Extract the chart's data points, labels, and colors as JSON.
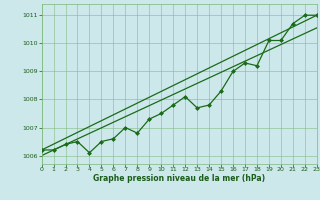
{
  "x": [
    0,
    1,
    2,
    3,
    4,
    5,
    6,
    7,
    8,
    9,
    10,
    11,
    12,
    13,
    14,
    15,
    16,
    17,
    18,
    19,
    20,
    21,
    22,
    23
  ],
  "line1": [
    1006.2,
    1006.2,
    1006.4,
    1006.5,
    1006.1,
    1006.5,
    1006.6,
    1007.0,
    1006.8,
    1007.3,
    1007.5,
    1007.8,
    1008.1,
    1007.7,
    1007.8,
    1008.3,
    1009.0,
    1009.3,
    1009.2,
    1010.1,
    1010.1,
    1010.7,
    1011.0,
    1011.0
  ],
  "line2_x": [
    0,
    23
  ],
  "line2_y": [
    1006.2,
    1011.0
  ],
  "line3_x": [
    0,
    23
  ],
  "line3_y": [
    1006.0,
    1010.55
  ],
  "ylim": [
    1005.7,
    1011.4
  ],
  "xlim": [
    0,
    23
  ],
  "yticks": [
    1006,
    1007,
    1008,
    1009,
    1010,
    1011
  ],
  "xticks": [
    0,
    1,
    2,
    3,
    4,
    5,
    6,
    7,
    8,
    9,
    10,
    11,
    12,
    13,
    14,
    15,
    16,
    17,
    18,
    19,
    20,
    21,
    22,
    23
  ],
  "xlabel": "Graphe pression niveau de la mer (hPa)",
  "line_color": "#1a6b1a",
  "bg_color": "#cde8ea",
  "grid_color": "#7ab87a",
  "tick_label_color": "#1a5c1a",
  "xlabel_color": "#1a5c1a"
}
